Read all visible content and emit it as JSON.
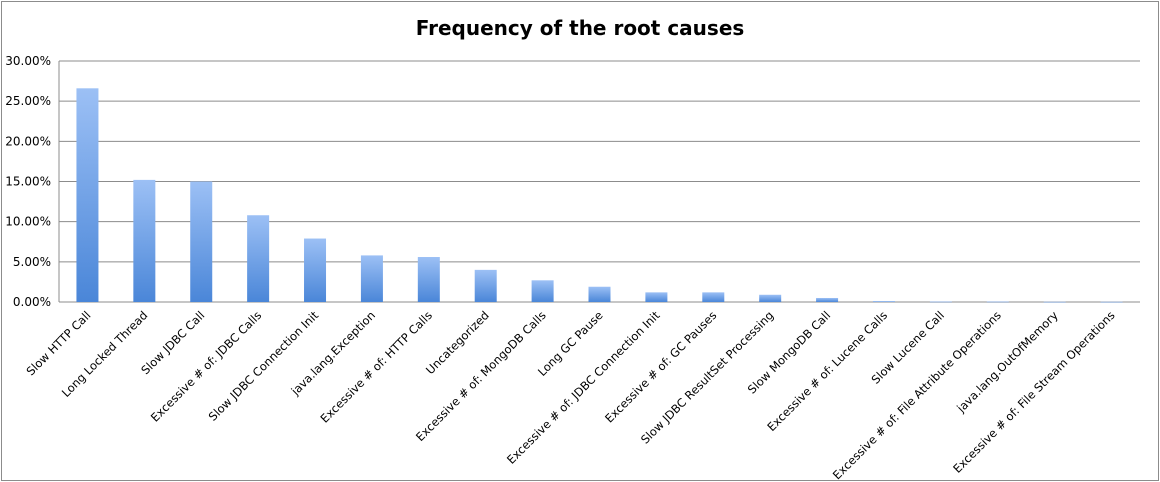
{
  "chart_data": {
    "type": "bar",
    "title": "Frequency of the root causes",
    "xlabel": "",
    "ylabel": "",
    "ylim": [
      0,
      30
    ],
    "grid": true,
    "legend": "none",
    "yticks": [
      "0.00%",
      "5.00%",
      "10.00%",
      "15.00%",
      "20.00%",
      "25.00%",
      "30.00%"
    ],
    "categories": [
      "Slow HTTP Call",
      "Long Locked Thread",
      "Slow JDBC Call",
      "Excessive # of: JDBC Calls",
      "Slow JDBC Connection Init",
      "java.lang.Exception",
      "Excessive # of: HTTP Calls",
      "Uncategorized",
      "Excessive # of: MongoDB Calls",
      "Long GC Pause",
      "Excessive # of: JDBC Connection Init",
      "Excessive # of: GC Pauses",
      "Slow JDBC ResultSet Processing",
      "Slow MongoDB Call",
      "Excessive # of: Lucene Calls",
      "Slow Lucene Call",
      "Excessive # of: File Attribute Operations",
      "java.lang.OutOfMemory",
      "Excessive # of: File Stream Operations"
    ],
    "values": [
      26.6,
      15.2,
      15.0,
      10.8,
      7.9,
      5.8,
      5.6,
      4.0,
      2.7,
      1.9,
      1.2,
      1.2,
      0.9,
      0.5,
      0.1,
      0.05,
      0.05,
      0.03,
      0.03
    ],
    "colors": {
      "bar_top": "#9cc0f5",
      "bar_bottom": "#4a86d8",
      "grid": "#8c8c8c",
      "axis": "#8c8c8c"
    }
  }
}
